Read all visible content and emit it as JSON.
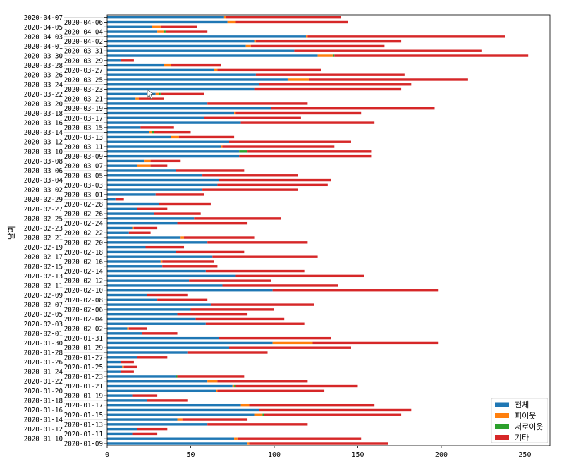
{
  "chart_data": {
    "type": "bar",
    "orientation": "horizontal",
    "stacked": true,
    "title": "",
    "xlabel": "",
    "ylabel": "날짜",
    "xlim": [
      0,
      265
    ],
    "xticks": [
      0,
      50,
      100,
      150,
      200,
      250
    ],
    "grid": false,
    "legend_position": "bottom-right",
    "categories": [
      "2020-01-09",
      "2020-01-10",
      "2020-01-11",
      "2020-01-12",
      "2020-01-13",
      "2020-01-14",
      "2020-01-15",
      "2020-01-16",
      "2020-01-17",
      "2020-01-18",
      "2020-01-19",
      "2020-01-20",
      "2020-01-21",
      "2020-01-22",
      "2020-01-23",
      "2020-01-24",
      "2020-01-25",
      "2020-01-26",
      "2020-01-27",
      "2020-01-28",
      "2020-01-29",
      "2020-01-30",
      "2020-01-31",
      "2020-02-01",
      "2020-02-02",
      "2020-02-03",
      "2020-02-04",
      "2020-02-05",
      "2020-02-06",
      "2020-02-07",
      "2020-02-08",
      "2020-02-09",
      "2020-02-10",
      "2020-02-11",
      "2020-02-12",
      "2020-02-13",
      "2020-02-14",
      "2020-02-15",
      "2020-02-16",
      "2020-02-17",
      "2020-02-18",
      "2020-02-19",
      "2020-02-20",
      "2020-02-21",
      "2020-02-22",
      "2020-02-23",
      "2020-02-24",
      "2020-02-25",
      "2020-02-26",
      "2020-02-27",
      "2020-02-28",
      "2020-02-29",
      "2020-03-01",
      "2020-03-02",
      "2020-03-03",
      "2020-03-04",
      "2020-03-05",
      "2020-03-06",
      "2020-03-07",
      "2020-03-08",
      "2020-03-09",
      "2020-03-10",
      "2020-03-11",
      "2020-03-12",
      "2020-03-13",
      "2020-03-14",
      "2020-03-15",
      "2020-03-16",
      "2020-03-17",
      "2020-03-18",
      "2020-03-19",
      "2020-03-20",
      "2020-03-21",
      "2020-03-22",
      "2020-03-23",
      "2020-03-24",
      "2020-03-25",
      "2020-03-26",
      "2020-03-27",
      "2020-03-28",
      "2020-03-29",
      "2020-03-30",
      "2020-03-31",
      "2020-04-01",
      "2020-04-02",
      "2020-04-03",
      "2020-04-04",
      "2020-04-05",
      "2020-04-06",
      "2020-04-07"
    ],
    "series": [
      {
        "name": "전체",
        "color": "#1f77b4",
        "values": [
          84,
          76,
          15,
          18,
          60,
          42,
          88,
          91,
          80,
          24,
          15,
          65,
          75,
          60,
          41,
          8,
          9,
          8,
          18,
          48,
          73,
          99,
          67,
          21,
          12,
          59,
          53,
          42,
          50,
          62,
          30,
          24,
          99,
          69,
          49,
          77,
          59,
          33,
          32,
          63,
          41,
          23,
          60,
          44,
          13,
          15,
          42,
          52,
          28,
          18,
          31,
          5,
          29,
          57,
          66,
          67,
          57,
          41,
          18,
          22,
          79,
          79,
          68,
          73,
          38,
          25,
          20,
          80,
          58,
          76,
          98,
          60,
          17,
          29,
          88,
          91,
          108,
          89,
          64,
          34,
          8,
          126,
          112,
          83,
          88,
          119,
          30,
          27,
          72,
          70
        ]
      },
      {
        "name": "피이웃",
        "color": "#ff7f0e",
        "values": [
          1,
          2,
          0,
          0,
          0,
          3,
          5,
          0,
          5,
          0,
          0,
          1,
          1,
          6,
          0,
          0,
          1,
          0,
          0,
          0,
          0,
          24,
          0,
          0,
          1,
          0,
          0,
          0,
          0,
          0,
          0,
          0,
          0,
          0,
          0,
          0,
          0,
          0,
          1,
          0,
          0,
          0,
          0,
          2,
          0,
          1,
          0,
          0,
          0,
          0,
          0,
          0,
          0,
          0,
          0,
          0,
          0,
          0,
          8,
          4,
          0,
          0,
          1,
          0,
          5,
          2,
          0,
          0,
          0,
          1,
          0,
          0,
          2,
          2,
          0,
          0,
          13,
          0,
          2,
          4,
          0,
          9,
          0,
          3,
          1,
          1,
          4,
          5,
          5,
          1
        ]
      },
      {
        "name": "서로이웃",
        "color": "#2ca02c",
        "values": [
          0,
          0,
          0,
          0,
          0,
          0,
          1,
          0,
          0,
          0,
          0,
          0,
          1,
          0,
          1,
          0,
          0,
          0,
          0,
          0,
          0,
          0,
          0,
          0,
          0,
          0,
          0,
          0,
          0,
          0,
          0,
          0,
          0,
          0,
          0,
          0,
          0,
          0,
          0,
          0,
          0,
          0,
          0,
          0,
          0,
          0,
          0,
          0,
          0,
          0,
          0,
          0,
          0,
          0,
          0,
          0,
          0,
          0,
          0,
          0,
          0,
          5,
          0,
          0,
          0,
          1,
          0,
          0,
          0,
          0,
          0,
          0,
          0,
          1,
          0,
          0,
          0,
          0,
          0,
          0,
          0,
          1,
          0,
          0,
          0,
          0,
          1,
          0,
          0,
          0
        ]
      },
      {
        "name": "기타",
        "color": "#d62728",
        "values": [
          83,
          74,
          15,
          18,
          60,
          39,
          82,
          91,
          75,
          24,
          15,
          64,
          73,
          54,
          40,
          8,
          8,
          8,
          18,
          48,
          73,
          75,
          67,
          21,
          11,
          59,
          53,
          42,
          50,
          62,
          30,
          24,
          99,
          69,
          49,
          77,
          59,
          33,
          31,
          63,
          41,
          23,
          60,
          42,
          13,
          14,
          42,
          52,
          28,
          18,
          31,
          5,
          29,
          57,
          66,
          67,
          57,
          41,
          10,
          18,
          79,
          74,
          67,
          73,
          33,
          22,
          20,
          80,
          58,
          75,
          98,
          60,
          15,
          26,
          88,
          91,
          95,
          89,
          62,
          30,
          8,
          116,
          112,
          80,
          87,
          118,
          25,
          22,
          67,
          69
        ]
      }
    ]
  }
}
